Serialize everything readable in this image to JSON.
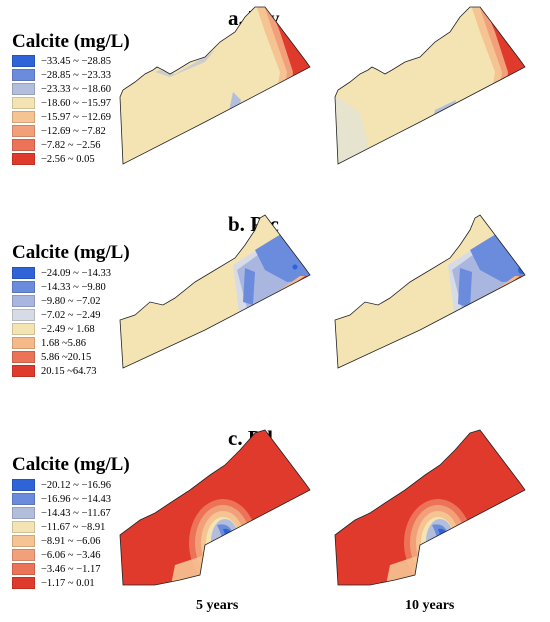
{
  "panels": [
    {
      "id": "a",
      "letter": "a. ",
      "formula_main": "T",
      "formula_sub": "1",
      "formula_tail": "y",
      "legend_title": "Calcite  (mg/L)",
      "legend": [
        {
          "label": "−33.45 ~ −28.85",
          "color": "#2f63d8"
        },
        {
          "label": "−28.85 ~ −23.33",
          "color": "#6b8bdc"
        },
        {
          "label": "−23.33 ~ −18.60",
          "color": "#b3bedd"
        },
        {
          "label": "−18.60 ~ −15.97",
          "color": "#f4e4b4"
        },
        {
          "label": "−15.97 ~ −12.69",
          "color": "#f6c392"
        },
        {
          "label": "−12.69 ~ −7.82",
          "color": "#f2a079"
        },
        {
          "label": "−7.82 ~ −2.56",
          "color": "#ec7357"
        },
        {
          "label": "−2.56 ~ 0.05",
          "color": "#e03a2c"
        }
      ]
    },
    {
      "id": "b",
      "letter": "b. ",
      "formula_main": "P",
      "formula_sub": "3",
      "formula_tail": "c",
      "legend_title": "Calcite  (mg/L)",
      "legend": [
        {
          "label": "−24.09 ~ −14.33",
          "color": "#2f63d8"
        },
        {
          "label": "−14.33 ~ −9.80",
          "color": "#6b8bdc"
        },
        {
          "label": "−9.80 ~ −7.02",
          "color": "#a9b7e0"
        },
        {
          "label": "−7.02 ~ −2.49",
          "color": "#d6dbe6"
        },
        {
          "label": "−2.49 ~ 1.68",
          "color": "#f4e4b4"
        },
        {
          "label": "1.68 ~5.86",
          "color": "#f6b98a"
        },
        {
          "label": "5.86 ~20.15",
          "color": "#ec7357"
        },
        {
          "label": "20.15 ~64.73",
          "color": "#e03a2c"
        }
      ]
    },
    {
      "id": "c",
      "letter": "c. ",
      "formula_main": "P",
      "formula_sub": "3",
      "formula_tail": "l",
      "legend_title": "Calcite  (mg/L)",
      "legend": [
        {
          "label": "−20.12 ~ −16.96",
          "color": "#2f63d8"
        },
        {
          "label": "−16.96 ~ −14.43",
          "color": "#6b8bdc"
        },
        {
          "label": "−14.43 ~ −11.67",
          "color": "#b3bedd"
        },
        {
          "label": "−11.67 ~ −8.91",
          "color": "#f4e4b4"
        },
        {
          "label": "−8.91 ~ −6.06",
          "color": "#f6c392"
        },
        {
          "label": "−6.06 ~ −3.46",
          "color": "#f2a079"
        },
        {
          "label": "−3.46 ~ −1.17",
          "color": "#ec7357"
        },
        {
          "label": "−1.17 ~ 0.01",
          "color": "#e03a2c"
        }
      ]
    }
  ],
  "footer": {
    "left": "5 years",
    "right": "10 years"
  }
}
